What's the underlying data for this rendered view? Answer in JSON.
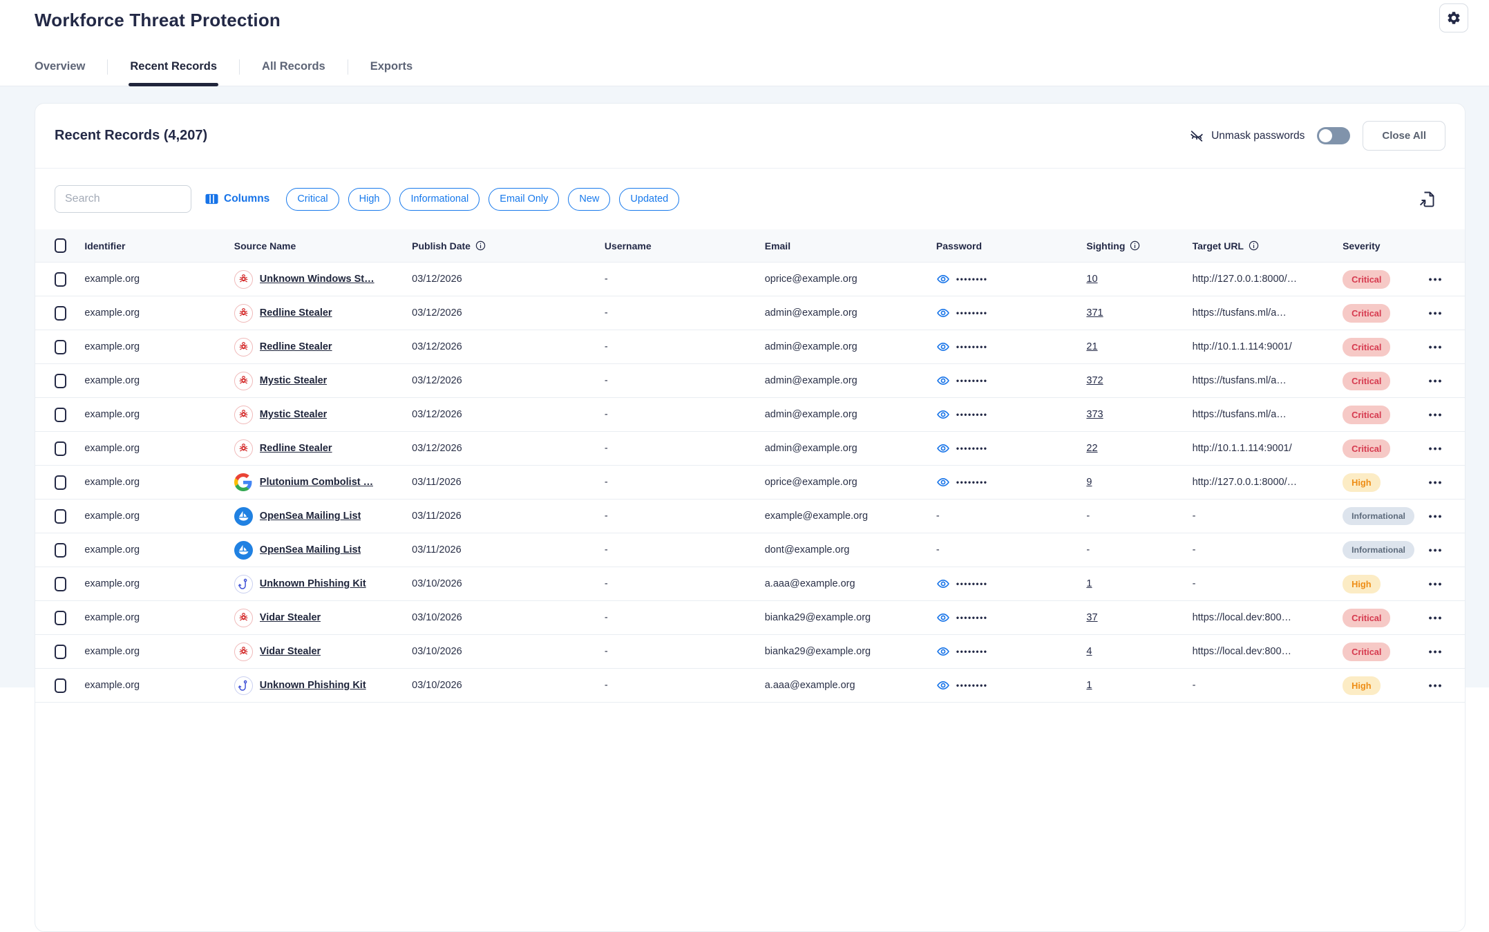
{
  "app": {
    "title": "Workforce Threat Protection"
  },
  "tabs": [
    {
      "label": "Overview",
      "active": false
    },
    {
      "label": "Recent Records",
      "active": true
    },
    {
      "label": "All Records",
      "active": false
    },
    {
      "label": "Exports",
      "active": false
    }
  ],
  "panel": {
    "title": "Recent Records (4,207)",
    "unmask_label": "Unmask passwords",
    "unmask_toggle_on": false,
    "close_all_label": "Close All",
    "search_placeholder": "Search",
    "columns_label": "Columns",
    "filter_chips": [
      "Critical",
      "High",
      "Informational",
      "Email Only",
      "New",
      "Updated"
    ]
  },
  "table": {
    "headers": [
      {
        "label": "Identifier",
        "info": false
      },
      {
        "label": "Source Name",
        "info": false
      },
      {
        "label": "Publish Date",
        "info": true
      },
      {
        "label": "Username",
        "info": false
      },
      {
        "label": "Email",
        "info": false
      },
      {
        "label": "Password",
        "info": false
      },
      {
        "label": "Sighting",
        "info": true
      },
      {
        "label": "Target URL",
        "info": true
      },
      {
        "label": "Severity",
        "info": false
      }
    ],
    "rows": [
      {
        "identifier": "example.org",
        "icon": "malware",
        "source": "Unknown Windows St…",
        "date": "03/12/2026",
        "username": "-",
        "email": "oprice@example.org",
        "password": "••••••••",
        "sighting": "10",
        "url": "http://127.0.0.1:8000/…",
        "severity": "Critical"
      },
      {
        "identifier": "example.org",
        "icon": "malware",
        "source": "Redline Stealer",
        "date": "03/12/2026",
        "username": "-",
        "email": "admin@example.org",
        "password": "••••••••",
        "sighting": "371",
        "url": "https://tusfans.ml/a…",
        "severity": "Critical"
      },
      {
        "identifier": "example.org",
        "icon": "malware",
        "source": "Redline Stealer",
        "date": "03/12/2026",
        "username": "-",
        "email": "admin@example.org",
        "password": "••••••••",
        "sighting": "21",
        "url": "http://10.1.1.114:9001/",
        "severity": "Critical"
      },
      {
        "identifier": "example.org",
        "icon": "malware",
        "source": "Mystic Stealer",
        "date": "03/12/2026",
        "username": "-",
        "email": "admin@example.org",
        "password": "••••••••",
        "sighting": "372",
        "url": "https://tusfans.ml/a…",
        "severity": "Critical"
      },
      {
        "identifier": "example.org",
        "icon": "malware",
        "source": "Mystic Stealer",
        "date": "03/12/2026",
        "username": "-",
        "email": "admin@example.org",
        "password": "••••••••",
        "sighting": "373",
        "url": "https://tusfans.ml/a…",
        "severity": "Critical"
      },
      {
        "identifier": "example.org",
        "icon": "malware",
        "source": "Redline Stealer",
        "date": "03/12/2026",
        "username": "-",
        "email": "admin@example.org",
        "password": "••••••••",
        "sighting": "22",
        "url": "http://10.1.1.114:9001/",
        "severity": "Critical"
      },
      {
        "identifier": "example.org",
        "icon": "google",
        "source": "Plutonium Combolist …",
        "date": "03/11/2026",
        "username": "-",
        "email": "oprice@example.org",
        "password": "••••••••",
        "sighting": "9",
        "url": "http://127.0.0.1:8000/…",
        "severity": "High"
      },
      {
        "identifier": "example.org",
        "icon": "opensea",
        "source": "OpenSea Mailing List",
        "date": "03/11/2026",
        "username": "-",
        "email": "example@example.org",
        "password": "-",
        "sighting": "-",
        "url": "-",
        "severity": "Informational"
      },
      {
        "identifier": "example.org",
        "icon": "opensea",
        "source": "OpenSea Mailing List",
        "date": "03/11/2026",
        "username": "-",
        "email": "dont@example.org",
        "password": "-",
        "sighting": "-",
        "url": "-",
        "severity": "Informational"
      },
      {
        "identifier": "example.org",
        "icon": "phishing",
        "source": "Unknown Phishing Kit",
        "date": "03/10/2026",
        "username": "-",
        "email": "a.aaa@example.org",
        "password": "••••••••",
        "sighting": "1",
        "url": "-",
        "severity": "High"
      },
      {
        "identifier": "example.org",
        "icon": "malware",
        "source": "Vidar Stealer",
        "date": "03/10/2026",
        "username": "-",
        "email": "bianka29@example.org",
        "password": "••••••••",
        "sighting": "37",
        "url": "https://local.dev:800…",
        "severity": "Critical"
      },
      {
        "identifier": "example.org",
        "icon": "malware",
        "source": "Vidar Stealer",
        "date": "03/10/2026",
        "username": "-",
        "email": "bianka29@example.org",
        "password": "••••••••",
        "sighting": "4",
        "url": "https://local.dev:800…",
        "severity": "Critical"
      },
      {
        "identifier": "example.org",
        "icon": "phishing",
        "source": "Unknown Phishing Kit",
        "date": "03/10/2026",
        "username": "-",
        "email": "a.aaa@example.org",
        "password": "••••••••",
        "sighting": "1",
        "url": "-",
        "severity": "High"
      }
    ]
  },
  "colors": {
    "accent_blue": "#1779ec",
    "dark_navy": "#232946",
    "critical_bg": "#f6c9c6",
    "critical_text": "#d63a4f",
    "high_bg": "#fcecc5",
    "high_text": "#ee8d15",
    "informational_bg": "#dde4ed",
    "informational_text": "#5d6b7c",
    "toggle_off_track": "#8093ab",
    "page_background": "#f2f6fa"
  }
}
